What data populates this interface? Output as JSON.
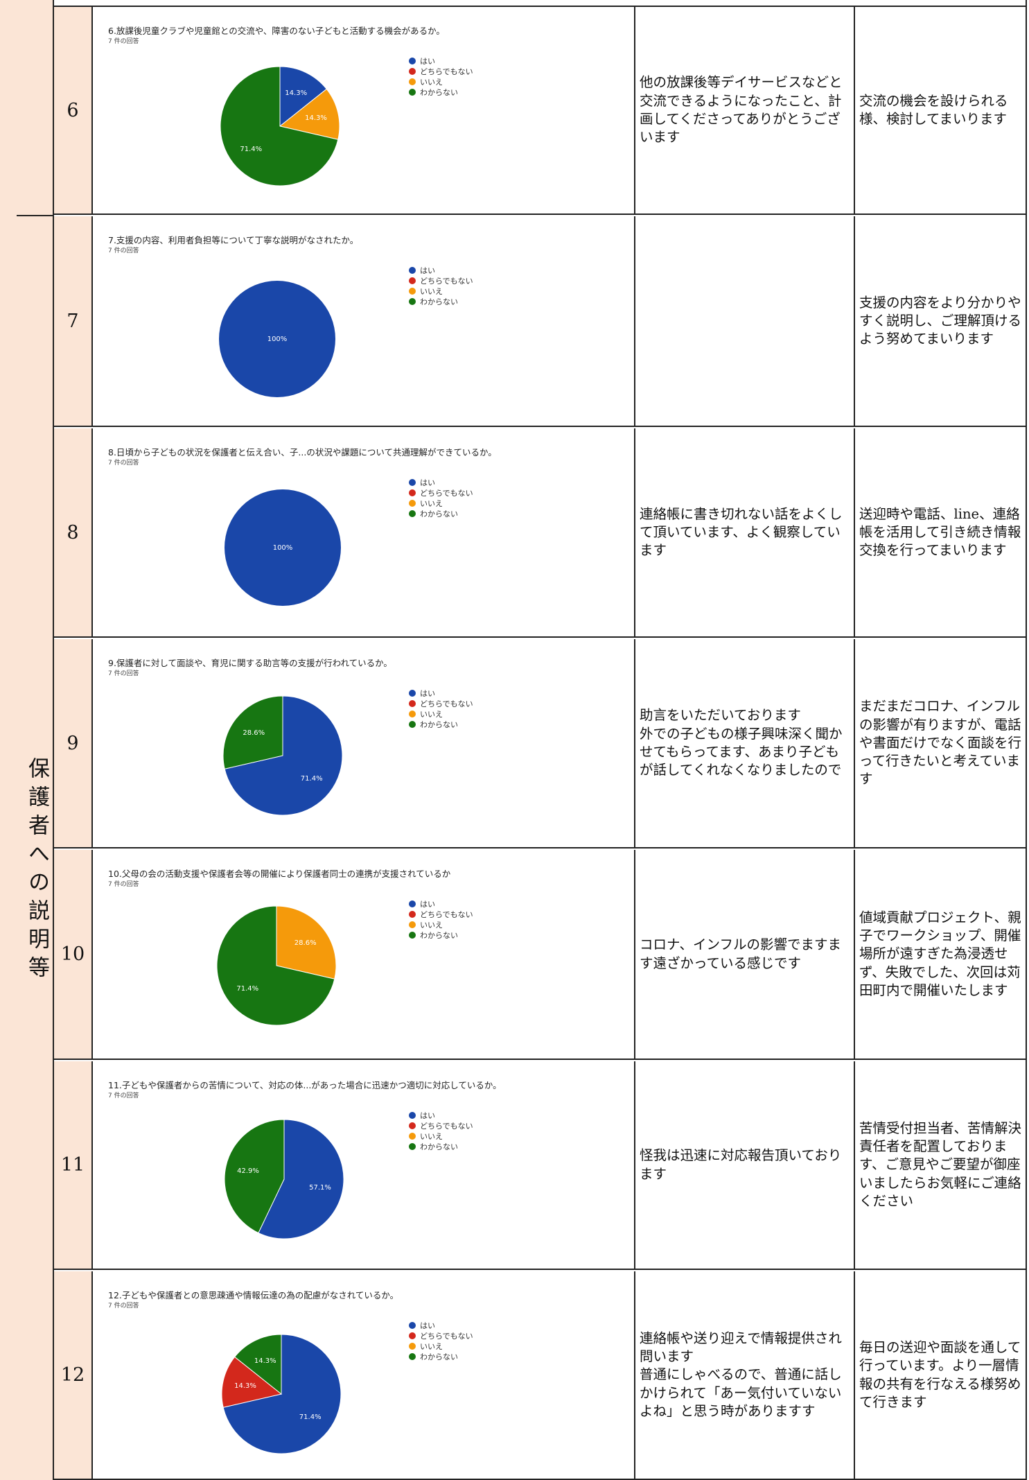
{
  "category": {
    "label": "保護者への説明等"
  },
  "legend_labels": [
    "はい",
    "どちらでもない",
    "いいえ",
    "わからない"
  ],
  "colors": {
    "yes": "#1a47a9",
    "neither": "#d3281c",
    "no": "#f59a0b",
    "unknown": "#177612"
  },
  "rows": [
    {
      "number": "6",
      "question": "6.放課後児童クラブや児童館との交流や、障害のない子どもと活動する機会があるか。",
      "responses_count": "7 件の回答",
      "comment": "他の放課後等デイサービスなどと交流できるようになったこと、計画してくださってありがとうございます",
      "response": "交流の機会を設けられる様、検討してまいります"
    },
    {
      "number": "7",
      "question": "7.支援の内容、利用者負担等について丁寧な説明がなされたか。",
      "responses_count": "7 件の回答",
      "comment": "",
      "response": "支援の内容をより分かりやすく説明し、ご理解頂けるよう努めてまいります"
    },
    {
      "number": "8",
      "question": "8.日頃から子どもの状況を保護者と伝え合い、子...の状況や課題について共通理解ができているか。",
      "responses_count": "7 件の回答",
      "comment": "連絡帳に書き切れない話をよくして頂いています、よく観察しています",
      "response": "送迎時や電話、line、連絡帳を活用して引き続き情報交換を行ってまいります"
    },
    {
      "number": "9",
      "question": "9.保護者に対して面談や、育児に関する助言等の支援が行われているか。",
      "responses_count": "7 件の回答",
      "comment": "助言をいただいております\n外での子どもの様子興味深く聞かせてもらってます、あまり子どもが話してくれなくなりましたので",
      "response": "まだまだコロナ、インフルの影響が有りますが、電話や書面だけでなく面談を行って行きたいと考えています"
    },
    {
      "number": "10",
      "question": "10.父母の会の活動支援や保護者会等の開催により保護者同士の連携が支援されているか",
      "responses_count": "7 件の回答",
      "comment": "コロナ、インフルの影響でますます遠ざかっている感じです",
      "response": "値域貢献プロジェクト、親子でワークショップ、開催場所が遠すぎた為浸透せず、失敗でした、次回は苅田町内で開催いたします"
    },
    {
      "number": "11",
      "question": "11.子どもや保護者からの苦情について、対応の体...があった場合に迅速かつ適切に対応しているか。",
      "responses_count": "7 件の回答",
      "comment": "怪我は迅速に対応報告頂いております",
      "response": "苦情受付担当者、苦情解決責任者を配置しております、ご意見やご要望が御座いましたらお気軽にご連絡ください"
    },
    {
      "number": "12",
      "question": "12.子どもや保護者との意思疎通や情報伝達の為の配慮がなされているか。",
      "responses_count": "7 件の回答",
      "comment": "連絡帳や送り迎えで情報提供され問います\n普通にしゃべるので、普通に話しかけられて「あー気付いていないよね」と思う時がありますす",
      "response": "毎日の送迎や面談を通して行っています。より一層情報の共有を行なえる様努めて行きます"
    }
  ],
  "chart_data": [
    {
      "type": "pie",
      "title": "6.放課後児童クラブや児童館との交流や、障害のない子どもと活動する機会があるか。",
      "categories": [
        "はい",
        "どちらでもない",
        "いいえ",
        "わからない"
      ],
      "values": [
        14.3,
        0,
        14.3,
        71.4
      ],
      "labels": [
        "14.3%",
        "",
        "14.3%",
        "71.4%"
      ]
    },
    {
      "type": "pie",
      "title": "7.支援の内容、利用者負担等について丁寧な説明がなされたか。",
      "categories": [
        "はい",
        "どちらでもない",
        "いいえ",
        "わからない"
      ],
      "values": [
        100,
        0,
        0,
        0
      ],
      "labels": [
        "100%",
        "",
        "",
        ""
      ]
    },
    {
      "type": "pie",
      "title": "8.日頃から子どもの状況を保護者と伝え合い、子...の状況や課題について共通理解ができているか。",
      "categories": [
        "はい",
        "どちらでもない",
        "いいえ",
        "わからない"
      ],
      "values": [
        100,
        0,
        0,
        0
      ],
      "labels": [
        "100%",
        "",
        "",
        ""
      ]
    },
    {
      "type": "pie",
      "title": "9.保護者に対して面談や、育児に関する助言等の支援が行われているか。",
      "categories": [
        "はい",
        "どちらでもない",
        "いいえ",
        "わからない"
      ],
      "values": [
        71.4,
        0,
        0,
        28.6
      ],
      "labels": [
        "71.4%",
        "",
        "",
        "28.6%"
      ]
    },
    {
      "type": "pie",
      "title": "10.父母の会の活動支援や保護者会等の開催により保護者同士の連携が支援されているか",
      "categories": [
        "はい",
        "どちらでもない",
        "いいえ",
        "わからない"
      ],
      "values": [
        0,
        0,
        28.6,
        71.4
      ],
      "labels": [
        "",
        "",
        "28.6%",
        "71.4%"
      ]
    },
    {
      "type": "pie",
      "title": "11.子どもや保護者からの苦情について、対応の体...があった場合に迅速かつ適切に対応しているか。",
      "categories": [
        "はい",
        "どちらでもない",
        "いいえ",
        "わからない"
      ],
      "values": [
        57.1,
        0,
        0,
        42.9
      ],
      "labels": [
        "57.1%",
        "",
        "",
        "42.9%"
      ]
    },
    {
      "type": "pie",
      "title": "12.子どもや保護者との意思疎通や情報伝達の為の配慮がなされているか。",
      "categories": [
        "はい",
        "どちらでもない",
        "いいえ",
        "わからない"
      ],
      "values": [
        71.4,
        14.3,
        0,
        14.3
      ],
      "labels": [
        "71.4%",
        "14.3%",
        "",
        "14.3%"
      ]
    }
  ]
}
